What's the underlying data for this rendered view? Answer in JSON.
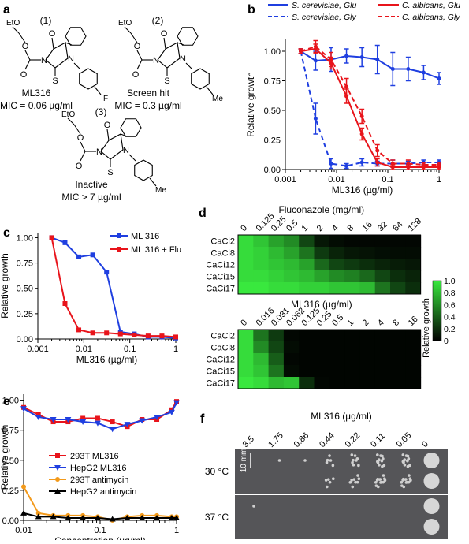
{
  "panel_letters": [
    "a",
    "b",
    "c",
    "d",
    "e",
    "f"
  ],
  "panel_a": {
    "compounds": [
      {
        "number": "(1)",
        "name": "ML316",
        "mic": "MIC = 0.06 µg/ml",
        "substituent": "F",
        "ester": "EtO"
      },
      {
        "number": "(2)",
        "name": "Screen hit",
        "mic": "MIC = 0.3 µg/ml",
        "substituent": "Me",
        "ester": "EtO"
      },
      {
        "number": "(3)",
        "name": "Inactive",
        "mic": "MIC > 7 µg/ml",
        "substituent": "Me",
        "ester": "EtO"
      }
    ],
    "atom_labels": {
      "O": "O",
      "N": "N",
      "S": "S"
    }
  },
  "chart_data": [
    {
      "panel": "b",
      "type": "line",
      "xlabel": "ML316 (µg/ml)",
      "ylabel": "Relative growth",
      "xscale": "log",
      "xlim": [
        0.001,
        1
      ],
      "ylim": [
        0,
        1.1
      ],
      "xticks": [
        0.001,
        0.01,
        0.1,
        1
      ],
      "xtick_labels": [
        "0.001",
        "0.01",
        "0.1",
        "1"
      ],
      "yticks": [
        0,
        0.25,
        0.5,
        0.75,
        1
      ],
      "ytick_labels": [
        "0.00",
        "0.25",
        "0.50",
        "0.75",
        "1.00"
      ],
      "legend_position": "top",
      "series": [
        {
          "name": "S. cerevisiae, Glu",
          "color": "#1f3fe0",
          "dash": "solid",
          "x": [
            0.002,
            0.0039,
            0.0078,
            0.0156,
            0.03125,
            0.0625,
            0.125,
            0.25,
            0.5,
            1
          ],
          "y": [
            1.0,
            0.92,
            0.93,
            0.96,
            0.95,
            0.93,
            0.85,
            0.85,
            0.82,
            0.77
          ],
          "err": [
            0.02,
            0.08,
            0.1,
            0.06,
            0.08,
            0.12,
            0.14,
            0.1,
            0.06,
            0.05
          ]
        },
        {
          "name": "S. cerevisiae, Gly",
          "color": "#1f3fe0",
          "dash": "dashed",
          "x": [
            0.002,
            0.0039,
            0.0078,
            0.0156,
            0.03125,
            0.0625,
            0.125,
            0.25,
            0.5,
            1
          ],
          "y": [
            1.0,
            0.43,
            0.05,
            0.03,
            0.06,
            0.05,
            0.05,
            0.05,
            0.06,
            0.06
          ],
          "err": [
            0.02,
            0.13,
            0.04,
            0.02,
            0.03,
            0.02,
            0.03,
            0.02,
            0.02,
            0.02
          ]
        },
        {
          "name": "C. albicans, Glu",
          "color": "#e8141b",
          "dash": "solid",
          "x": [
            0.002,
            0.0039,
            0.0078,
            0.0156,
            0.03125,
            0.0625,
            0.125,
            0.25,
            0.5,
            1
          ],
          "y": [
            1.0,
            1.02,
            0.9,
            0.62,
            0.3,
            0.06,
            0.02,
            0.02,
            0.02,
            0.02
          ],
          "err": [
            0.02,
            0.04,
            0.05,
            0.06,
            0.05,
            0.03,
            0.02,
            0.02,
            0.02,
            0.02
          ]
        },
        {
          "name": "C. albicans, Gly",
          "color": "#e8141b",
          "dash": "dashed",
          "x": [
            0.002,
            0.0039,
            0.0078,
            0.0156,
            0.03125,
            0.0625,
            0.125,
            0.25,
            0.5,
            1
          ],
          "y": [
            1.0,
            1.04,
            0.93,
            0.7,
            0.45,
            0.16,
            0.05,
            0.05,
            0.04,
            0.04
          ],
          "err": [
            0.02,
            0.05,
            0.06,
            0.07,
            0.06,
            0.05,
            0.03,
            0.03,
            0.02,
            0.02
          ]
        }
      ]
    },
    {
      "panel": "c",
      "type": "line",
      "xlabel": "ML316 (µg/ml)",
      "ylabel": "Relative growth",
      "xscale": "log",
      "xlim": [
        0.001,
        1
      ],
      "ylim": [
        0,
        1.05
      ],
      "xticks": [
        0.001,
        0.01,
        0.1,
        1
      ],
      "xtick_labels": [
        "0.001",
        "0.01",
        "0.1",
        "1"
      ],
      "yticks": [
        0,
        0.25,
        0.5,
        0.75,
        1
      ],
      "ytick_labels": [
        "0.00",
        "0.25",
        "0.50",
        "0.75",
        "1.00"
      ],
      "legend_position": "top-right",
      "series": [
        {
          "name": "ML 316",
          "color": "#1f3fe0",
          "x": [
            0.002,
            0.0039,
            0.0078,
            0.0156,
            0.03125,
            0.0625,
            0.125,
            0.25,
            0.5,
            1
          ],
          "y": [
            1.0,
            0.95,
            0.81,
            0.83,
            0.66,
            0.07,
            0.05,
            0.02,
            0.02,
            0.01
          ]
        },
        {
          "name": "ML 316 + Flu",
          "color": "#e8141b",
          "x": [
            0.002,
            0.0039,
            0.0078,
            0.0156,
            0.03125,
            0.0625,
            0.125,
            0.25,
            0.5,
            1
          ],
          "y": [
            1.0,
            0.35,
            0.09,
            0.06,
            0.06,
            0.05,
            0.04,
            0.03,
            0.03,
            0.02
          ]
        }
      ]
    },
    {
      "panel": "d-top",
      "type": "heatmap",
      "title": "Fluconazole (mg/ml)",
      "columns": [
        "0",
        "0.125",
        "0.25",
        "0.5",
        "1",
        "2",
        "4",
        "8",
        "16",
        "32",
        "64",
        "128"
      ],
      "rows": [
        "CaCi2",
        "CaCi8",
        "CaCi12",
        "CaCi15",
        "CaCi17"
      ],
      "values": [
        [
          0.95,
          0.85,
          0.7,
          0.6,
          0.3,
          0.1,
          0.05,
          0.03,
          0.03,
          0.03,
          0.03,
          0.03
        ],
        [
          0.95,
          0.9,
          0.8,
          0.7,
          0.5,
          0.25,
          0.15,
          0.1,
          0.08,
          0.06,
          0.05,
          0.05
        ],
        [
          0.95,
          0.9,
          0.85,
          0.8,
          0.7,
          0.45,
          0.3,
          0.25,
          0.2,
          0.15,
          0.12,
          0.1
        ],
        [
          0.95,
          0.95,
          0.9,
          0.85,
          0.8,
          0.7,
          0.6,
          0.55,
          0.45,
          0.3,
          0.2,
          0.15
        ],
        [
          1.0,
          1.0,
          0.95,
          0.95,
          0.9,
          0.9,
          0.85,
          0.85,
          0.8,
          0.5,
          0.3,
          0.2
        ]
      ]
    },
    {
      "panel": "d-bottom",
      "type": "heatmap",
      "title": "ML316 (µg/ml)",
      "columns": [
        "0",
        "0.016",
        "0.031",
        "0.062",
        "0.125",
        "0.25",
        "0.5",
        "1",
        "2",
        "4",
        "8",
        "16"
      ],
      "rows": [
        "CaCi2",
        "CaCi8",
        "CaCi12",
        "CaCi15",
        "CaCi17"
      ],
      "values": [
        [
          0.95,
          0.5,
          0.25,
          0.03,
          0.02,
          0.02,
          0.02,
          0.02,
          0.02,
          0.02,
          0.02,
          0.02
        ],
        [
          0.95,
          0.6,
          0.3,
          0.05,
          0.02,
          0.02,
          0.02,
          0.02,
          0.02,
          0.02,
          0.02,
          0.02
        ],
        [
          0.95,
          0.8,
          0.4,
          0.03,
          0.02,
          0.02,
          0.02,
          0.02,
          0.02,
          0.02,
          0.02,
          0.02
        ],
        [
          0.95,
          0.85,
          0.5,
          0.05,
          0.02,
          0.02,
          0.02,
          0.02,
          0.02,
          0.02,
          0.02,
          0.02
        ],
        [
          1.0,
          0.95,
          0.8,
          0.85,
          0.2,
          0.03,
          0.02,
          0.02,
          0.02,
          0.02,
          0.02,
          0.02
        ]
      ],
      "colorbar": {
        "label": "Relative growth",
        "ticks": [
          0,
          0.2,
          0.4,
          0.6,
          0.8,
          1.0
        ],
        "tick_labels": [
          "0",
          "0.2",
          "0.4",
          "0.6",
          "0.8",
          "1.0"
        ],
        "low_color": "#000000",
        "high_color": "#39e83e"
      }
    },
    {
      "panel": "e",
      "type": "line",
      "xlabel": "Concentration (µg/ml)",
      "ylabel": "Relative growth",
      "xscale": "log",
      "xlim": [
        0.01,
        1
      ],
      "ylim": [
        0,
        1.05
      ],
      "xticks": [
        0.01,
        0.1,
        1
      ],
      "xtick_labels": [
        "0.01",
        "0.1",
        "1"
      ],
      "yticks": [
        0,
        0.25,
        0.5,
        0.75,
        1
      ],
      "ytick_labels": [
        "0.00",
        "0.25",
        "0.50",
        "0.75",
        "1.00"
      ],
      "legend_position": "bottom-left",
      "series": [
        {
          "name": "293T ML316",
          "color": "#e8141b",
          "marker": "square",
          "x": [
            0.01,
            0.0156,
            0.0244,
            0.0381,
            0.0595,
            0.093,
            0.145,
            0.227,
            0.354,
            0.553,
            0.864,
            1.0
          ],
          "y": [
            0.94,
            0.88,
            0.82,
            0.82,
            0.85,
            0.85,
            0.82,
            0.78,
            0.84,
            0.84,
            0.92,
            0.99
          ]
        },
        {
          "name": "HepG2 ML316",
          "color": "#1f3fe0",
          "marker": "triangle-down",
          "x": [
            0.01,
            0.0156,
            0.0244,
            0.0381,
            0.0595,
            0.093,
            0.145,
            0.227,
            0.354,
            0.553,
            0.864,
            1.0
          ],
          "y": [
            0.93,
            0.86,
            0.84,
            0.84,
            0.82,
            0.81,
            0.76,
            0.8,
            0.83,
            0.86,
            0.9,
            0.98
          ]
        },
        {
          "name": "293T antimycin",
          "color": "#f39a1b",
          "marker": "circle",
          "x": [
            0.01,
            0.0156,
            0.0244,
            0.0381,
            0.0595,
            0.093,
            0.145,
            0.227,
            0.354,
            0.553,
            0.864,
            1.0
          ],
          "y": [
            0.28,
            0.06,
            0.04,
            0.04,
            0.04,
            0.03,
            0.0,
            0.03,
            0.04,
            0.04,
            0.03,
            0.03
          ]
        },
        {
          "name": "HepG2 antimycin",
          "color": "#000000",
          "marker": "triangle-up",
          "x": [
            0.01,
            0.0156,
            0.0244,
            0.0381,
            0.0595,
            0.093,
            0.145,
            0.227,
            0.354,
            0.553,
            0.864,
            1.0
          ],
          "y": [
            0.06,
            0.03,
            0.03,
            0.02,
            0.02,
            0.02,
            0.01,
            0.02,
            0.02,
            0.02,
            0.02,
            0.02
          ]
        }
      ]
    }
  ],
  "panel_f": {
    "title": "ML316 (µg/ml)",
    "columns": [
      "3.5",
      "1.75",
      "0.86",
      "0.44",
      "0.22",
      "0.11",
      "0.05",
      "0"
    ],
    "rows": [
      "30 °C",
      "37 °C"
    ],
    "scale_bar": "10 mm",
    "colony_growth": [
      [
        0,
        0.05,
        0.05,
        0.35,
        0.55,
        0.9,
        0.9,
        1.0
      ],
      [
        0.05,
        0,
        0,
        0,
        0,
        0,
        0,
        1.0
      ]
    ]
  }
}
